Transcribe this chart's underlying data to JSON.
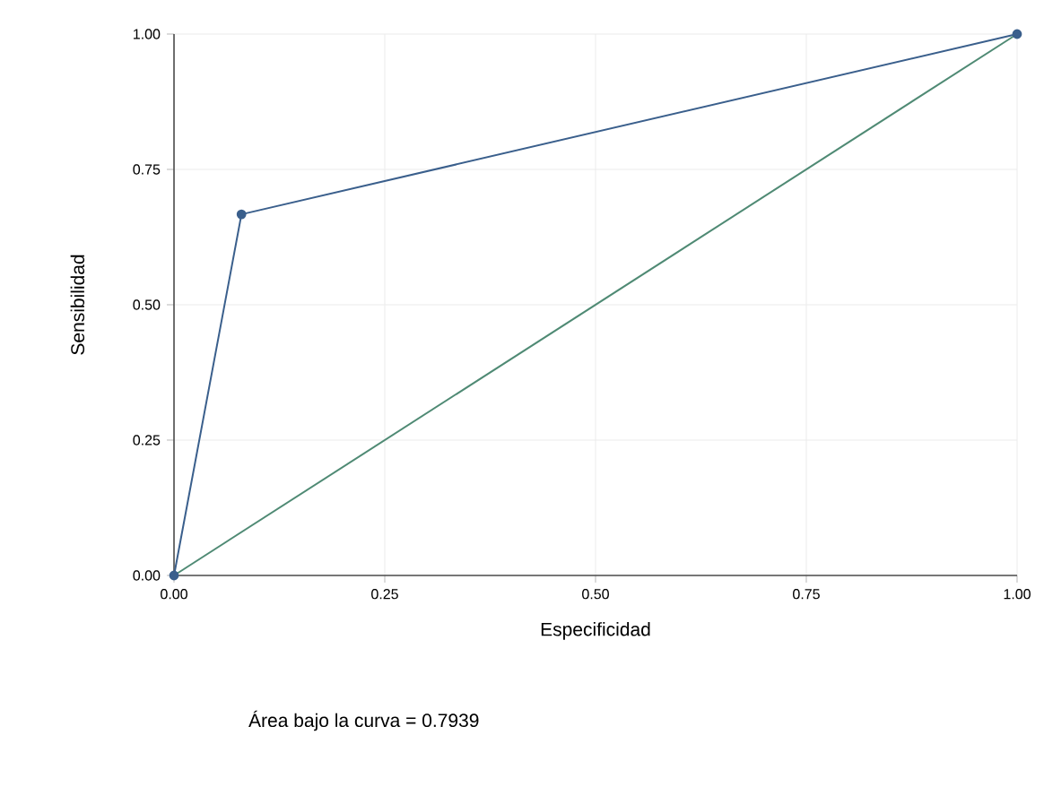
{
  "chart_data": {
    "type": "line",
    "xlabel": "Especificidad",
    "ylabel": "Sensibilidad",
    "annotations": [
      "Área bajo la curva = 0.7939"
    ],
    "series": [
      {
        "color": "#3a5f8c",
        "x": [
          0,
          0.08,
          1
        ],
        "values": [
          0,
          0.667,
          1
        ],
        "marker": "circle"
      },
      {
        "color": "#4f8a74",
        "x": [
          0,
          1
        ],
        "values": [
          0,
          1
        ],
        "marker": "none"
      }
    ],
    "xlim": [
      0,
      1
    ],
    "ylim": [
      0,
      1
    ],
    "xticks": [
      {
        "value": 0,
        "label": "0.00"
      },
      {
        "value": 0.25,
        "label": "0.25"
      },
      {
        "value": 0.5,
        "label": "0.50"
      },
      {
        "value": 0.75,
        "label": "0.75"
      },
      {
        "value": 1,
        "label": "1.00"
      }
    ],
    "yticks": [
      {
        "value": 0,
        "label": "0.00"
      },
      {
        "value": 0.25,
        "label": "0.25"
      },
      {
        "value": 0.5,
        "label": "0.50"
      },
      {
        "value": 0.75,
        "label": "0.75"
      },
      {
        "value": 1,
        "label": "1.00"
      }
    ],
    "grid": true,
    "line_style": "solid"
  }
}
